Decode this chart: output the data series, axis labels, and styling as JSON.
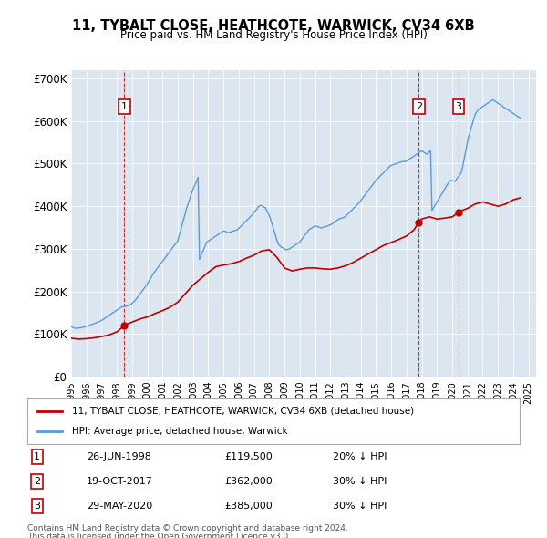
{
  "title": "11, TYBALT CLOSE, HEATHCOTE, WARWICK, CV34 6XB",
  "subtitle": "Price paid vs. HM Land Registry's House Price Index (HPI)",
  "ylabel_ticks": [
    "£0",
    "£100K",
    "£200K",
    "£300K",
    "£400K",
    "£500K",
    "£600K",
    "£700K"
  ],
  "ytick_values": [
    0,
    100000,
    200000,
    300000,
    400000,
    500000,
    600000,
    700000
  ],
  "ylim": [
    0,
    720000
  ],
  "xlim_start": 1995.0,
  "xlim_end": 2025.5,
  "hpi_color": "#5b9bd5",
  "property_color": "#c00000",
  "background_color": "#dce6f1",
  "legend_label_property": "11, TYBALT CLOSE, HEATHCOTE, WARWICK, CV34 6XB (detached house)",
  "legend_label_hpi": "HPI: Average price, detached house, Warwick",
  "sales": [
    {
      "num": 1,
      "date": "26-JUN-1998",
      "price": 119500,
      "pct": "20%",
      "dir": "↓",
      "year": 1998.49
    },
    {
      "num": 2,
      "date": "19-OCT-2017",
      "price": 362000,
      "pct": "30%",
      "dir": "↓",
      "year": 2017.8
    },
    {
      "num": 3,
      "date": "29-MAY-2020",
      "price": 385000,
      "pct": "30%",
      "dir": "↓",
      "year": 2020.41
    }
  ],
  "footer_line1": "Contains HM Land Registry data © Crown copyright and database right 2024.",
  "footer_line2": "This data is licensed under the Open Government Licence v3.0.",
  "hpi_data": {
    "years": [
      1995.0,
      1995.08,
      1995.17,
      1995.25,
      1995.33,
      1995.42,
      1995.5,
      1995.58,
      1995.67,
      1995.75,
      1995.83,
      1995.92,
      1996.0,
      1996.08,
      1996.17,
      1996.25,
      1996.33,
      1996.42,
      1996.5,
      1996.58,
      1996.67,
      1996.75,
      1996.83,
      1996.92,
      1997.0,
      1997.08,
      1997.17,
      1997.25,
      1997.33,
      1997.42,
      1997.5,
      1997.58,
      1997.67,
      1997.75,
      1997.83,
      1997.92,
      1998.0,
      1998.08,
      1998.17,
      1998.25,
      1998.33,
      1998.42,
      1998.5,
      1998.58,
      1998.67,
      1998.75,
      1998.83,
      1998.92,
      1999.0,
      1999.08,
      1999.17,
      1999.25,
      1999.33,
      1999.42,
      1999.5,
      1999.58,
      1999.67,
      1999.75,
      1999.83,
      1999.92,
      2000.0,
      2000.08,
      2000.17,
      2000.25,
      2000.33,
      2000.42,
      2000.5,
      2000.58,
      2000.67,
      2000.75,
      2000.83,
      2000.92,
      2001.0,
      2001.08,
      2001.17,
      2001.25,
      2001.33,
      2001.42,
      2001.5,
      2001.58,
      2001.67,
      2001.75,
      2001.83,
      2001.92,
      2002.0,
      2002.08,
      2002.17,
      2002.25,
      2002.33,
      2002.42,
      2002.5,
      2002.58,
      2002.67,
      2002.75,
      2002.83,
      2002.92,
      2003.0,
      2003.08,
      2003.17,
      2003.25,
      2003.33,
      2003.42,
      2003.5,
      2003.58,
      2003.67,
      2003.75,
      2003.83,
      2003.92,
      2004.0,
      2004.08,
      2004.17,
      2004.25,
      2004.33,
      2004.42,
      2004.5,
      2004.58,
      2004.67,
      2004.75,
      2004.83,
      2004.92,
      2005.0,
      2005.08,
      2005.17,
      2005.25,
      2005.33,
      2005.42,
      2005.5,
      2005.58,
      2005.67,
      2005.75,
      2005.83,
      2005.92,
      2006.0,
      2006.08,
      2006.17,
      2006.25,
      2006.33,
      2006.42,
      2006.5,
      2006.58,
      2006.67,
      2006.75,
      2006.83,
      2006.92,
      2007.0,
      2007.08,
      2007.17,
      2007.25,
      2007.33,
      2007.42,
      2007.5,
      2007.58,
      2007.67,
      2007.75,
      2007.83,
      2007.92,
      2008.0,
      2008.08,
      2008.17,
      2008.25,
      2008.33,
      2008.42,
      2008.5,
      2008.58,
      2008.67,
      2008.75,
      2008.83,
      2008.92,
      2009.0,
      2009.08,
      2009.17,
      2009.25,
      2009.33,
      2009.42,
      2009.5,
      2009.58,
      2009.67,
      2009.75,
      2009.83,
      2009.92,
      2010.0,
      2010.08,
      2010.17,
      2010.25,
      2010.33,
      2010.42,
      2010.5,
      2010.58,
      2010.67,
      2010.75,
      2010.83,
      2010.92,
      2011.0,
      2011.08,
      2011.17,
      2011.25,
      2011.33,
      2011.42,
      2011.5,
      2011.58,
      2011.67,
      2011.75,
      2011.83,
      2011.92,
      2012.0,
      2012.08,
      2012.17,
      2012.25,
      2012.33,
      2012.42,
      2012.5,
      2012.58,
      2012.67,
      2012.75,
      2012.83,
      2012.92,
      2013.0,
      2013.08,
      2013.17,
      2013.25,
      2013.33,
      2013.42,
      2013.5,
      2013.58,
      2013.67,
      2013.75,
      2013.83,
      2013.92,
      2014.0,
      2014.08,
      2014.17,
      2014.25,
      2014.33,
      2014.42,
      2014.5,
      2014.58,
      2014.67,
      2014.75,
      2014.83,
      2014.92,
      2015.0,
      2015.08,
      2015.17,
      2015.25,
      2015.33,
      2015.42,
      2015.5,
      2015.58,
      2015.67,
      2015.75,
      2015.83,
      2015.92,
      2016.0,
      2016.08,
      2016.17,
      2016.25,
      2016.33,
      2016.42,
      2016.5,
      2016.58,
      2016.67,
      2016.75,
      2016.83,
      2016.92,
      2017.0,
      2017.08,
      2017.17,
      2017.25,
      2017.33,
      2017.42,
      2017.5,
      2017.58,
      2017.67,
      2017.75,
      2017.83,
      2017.92,
      2018.0,
      2018.08,
      2018.17,
      2018.25,
      2018.33,
      2018.42,
      2018.5,
      2018.58,
      2018.67,
      2018.75,
      2018.83,
      2018.92,
      2019.0,
      2019.08,
      2019.17,
      2019.25,
      2019.33,
      2019.42,
      2019.5,
      2019.58,
      2019.67,
      2019.75,
      2019.83,
      2019.92,
      2020.0,
      2020.08,
      2020.17,
      2020.25,
      2020.33,
      2020.42,
      2020.5,
      2020.58,
      2020.67,
      2020.75,
      2020.83,
      2020.92,
      2021.0,
      2021.08,
      2021.17,
      2021.25,
      2021.33,
      2021.42,
      2021.5,
      2021.58,
      2021.67,
      2021.75,
      2021.83,
      2021.92,
      2022.0,
      2022.08,
      2022.17,
      2022.25,
      2022.33,
      2022.42,
      2022.5,
      2022.58,
      2022.67,
      2022.75,
      2022.83,
      2022.92,
      2023.0,
      2023.08,
      2023.17,
      2023.25,
      2023.33,
      2023.42,
      2023.5,
      2023.58,
      2023.67,
      2023.75,
      2023.83,
      2023.92,
      2024.0,
      2024.08,
      2024.17,
      2024.25,
      2024.33,
      2024.42,
      2024.5
    ],
    "values": [
      118000,
      116000,
      115000,
      114000,
      113000,
      113500,
      114000,
      114500,
      115000,
      115500,
      116000,
      117000,
      118000,
      119000,
      120000,
      121000,
      122000,
      123000,
      124000,
      125000,
      126500,
      128000,
      129000,
      130000,
      132000,
      134000,
      136000,
      138000,
      140000,
      142000,
      144000,
      146000,
      148000,
      150000,
      152000,
      154000,
      156000,
      158000,
      160000,
      162000,
      164000,
      164000,
      164500,
      165000,
      166000,
      167000,
      168000,
      169000,
      172000,
      175000,
      178000,
      181000,
      185000,
      189000,
      193000,
      197000,
      201000,
      205000,
      209000,
      213000,
      218000,
      223000,
      228000,
      233000,
      238000,
      243000,
      247000,
      251000,
      255000,
      259000,
      263000,
      267000,
      271000,
      275000,
      279000,
      283000,
      287000,
      291000,
      295000,
      299000,
      303000,
      307000,
      311000,
      315000,
      319000,
      330000,
      341000,
      352000,
      363000,
      374000,
      385000,
      396000,
      405000,
      414000,
      423000,
      432000,
      440000,
      447000,
      454000,
      461000,
      468000,
      275000,
      282000,
      289000,
      296000,
      303000,
      310000,
      317000,
      318000,
      320000,
      322000,
      324000,
      326000,
      328000,
      330000,
      332000,
      334000,
      336000,
      338000,
      340000,
      342000,
      341000,
      340000,
      339000,
      338000,
      339000,
      340000,
      341000,
      342000,
      343000,
      344000,
      345000,
      348000,
      351000,
      354000,
      357000,
      360000,
      363000,
      366000,
      369000,
      372000,
      375000,
      378000,
      381000,
      385000,
      389000,
      393000,
      397000,
      400000,
      402000,
      401000,
      400000,
      398000,
      396000,
      390000,
      384000,
      378000,
      370000,
      360000,
      350000,
      340000,
      330000,
      320000,
      312000,
      308000,
      305000,
      303000,
      302000,
      300000,
      298000,
      298000,
      299000,
      300000,
      302000,
      304000,
      306000,
      308000,
      310000,
      312000,
      314000,
      316000,
      320000,
      324000,
      328000,
      332000,
      336000,
      340000,
      344000,
      346000,
      348000,
      350000,
      352000,
      354000,
      353000,
      352000,
      351000,
      350000,
      349000,
      350000,
      351000,
      352000,
      353000,
      354000,
      355000,
      356000,
      358000,
      360000,
      362000,
      364000,
      366000,
      368000,
      370000,
      371000,
      372000,
      373000,
      374000,
      376000,
      379000,
      382000,
      385000,
      388000,
      391000,
      394000,
      397000,
      400000,
      403000,
      406000,
      409000,
      413000,
      417000,
      421000,
      425000,
      429000,
      433000,
      437000,
      441000,
      445000,
      449000,
      453000,
      457000,
      461000,
      464000,
      467000,
      470000,
      473000,
      476000,
      479000,
      482000,
      485000,
      488000,
      491000,
      494000,
      496000,
      497000,
      498000,
      499000,
      500000,
      501000,
      502000,
      503000,
      504000,
      505000,
      505000,
      505000,
      506000,
      508000,
      510000,
      512000,
      514000,
      516000,
      518000,
      520000,
      522000,
      524000,
      526000,
      528000,
      530000,
      528000,
      526000,
      524000,
      522000,
      525000,
      528000,
      531000,
      390000,
      395000,
      400000,
      405000,
      410000,
      415000,
      420000,
      425000,
      430000,
      435000,
      440000,
      445000,
      450000,
      455000,
      458000,
      461000,
      460000,
      459000,
      458000,
      462000,
      466000,
      470000,
      474000,
      478000,
      490000,
      505000,
      520000,
      535000,
      550000,
      565000,
      575000,
      585000,
      595000,
      605000,
      615000,
      620000,
      625000,
      628000,
      630000,
      632000,
      634000,
      636000,
      638000,
      640000,
      642000,
      644000,
      646000,
      648000,
      650000,
      648000,
      646000,
      644000,
      642000,
      640000,
      638000,
      636000,
      634000,
      632000,
      630000,
      628000,
      626000,
      624000,
      622000,
      620000,
      618000,
      616000,
      614000,
      612000,
      610000,
      608000,
      606000,
      604000,
      602000,
      604000,
      606000,
      608000,
      610000,
      612000,
      614000
    ]
  },
  "property_data": {
    "years": [
      1995.0,
      1995.5,
      1996.0,
      1996.5,
      1997.0,
      1997.5,
      1998.0,
      1998.49,
      1998.5,
      1999.0,
      1999.5,
      2000.0,
      2000.5,
      2001.0,
      2001.5,
      2002.0,
      2002.5,
      2003.0,
      2003.5,
      2004.0,
      2004.5,
      2005.0,
      2005.5,
      2006.0,
      2006.5,
      2007.0,
      2007.5,
      2008.0,
      2008.5,
      2009.0,
      2009.5,
      2010.0,
      2010.5,
      2011.0,
      2011.5,
      2012.0,
      2012.5,
      2013.0,
      2013.5,
      2014.0,
      2014.5,
      2015.0,
      2015.5,
      2016.0,
      2016.5,
      2017.0,
      2017.5,
      2017.8,
      2018.0,
      2018.5,
      2019.0,
      2019.5,
      2020.0,
      2020.41,
      2020.5,
      2021.0,
      2021.5,
      2022.0,
      2022.5,
      2023.0,
      2023.5,
      2024.0,
      2024.5
    ],
    "values": [
      90000,
      88000,
      89000,
      91000,
      94000,
      98000,
      105000,
      119500,
      121000,
      128000,
      135000,
      140000,
      148000,
      155000,
      163000,
      175000,
      195000,
      215000,
      230000,
      245000,
      258000,
      262000,
      265000,
      270000,
      278000,
      285000,
      295000,
      298000,
      280000,
      255000,
      248000,
      252000,
      255000,
      255000,
      253000,
      252000,
      255000,
      260000,
      268000,
      278000,
      288000,
      298000,
      308000,
      315000,
      322000,
      330000,
      345000,
      362000,
      370000,
      375000,
      370000,
      372000,
      375000,
      385000,
      388000,
      395000,
      405000,
      410000,
      405000,
      400000,
      405000,
      415000,
      420000
    ]
  }
}
